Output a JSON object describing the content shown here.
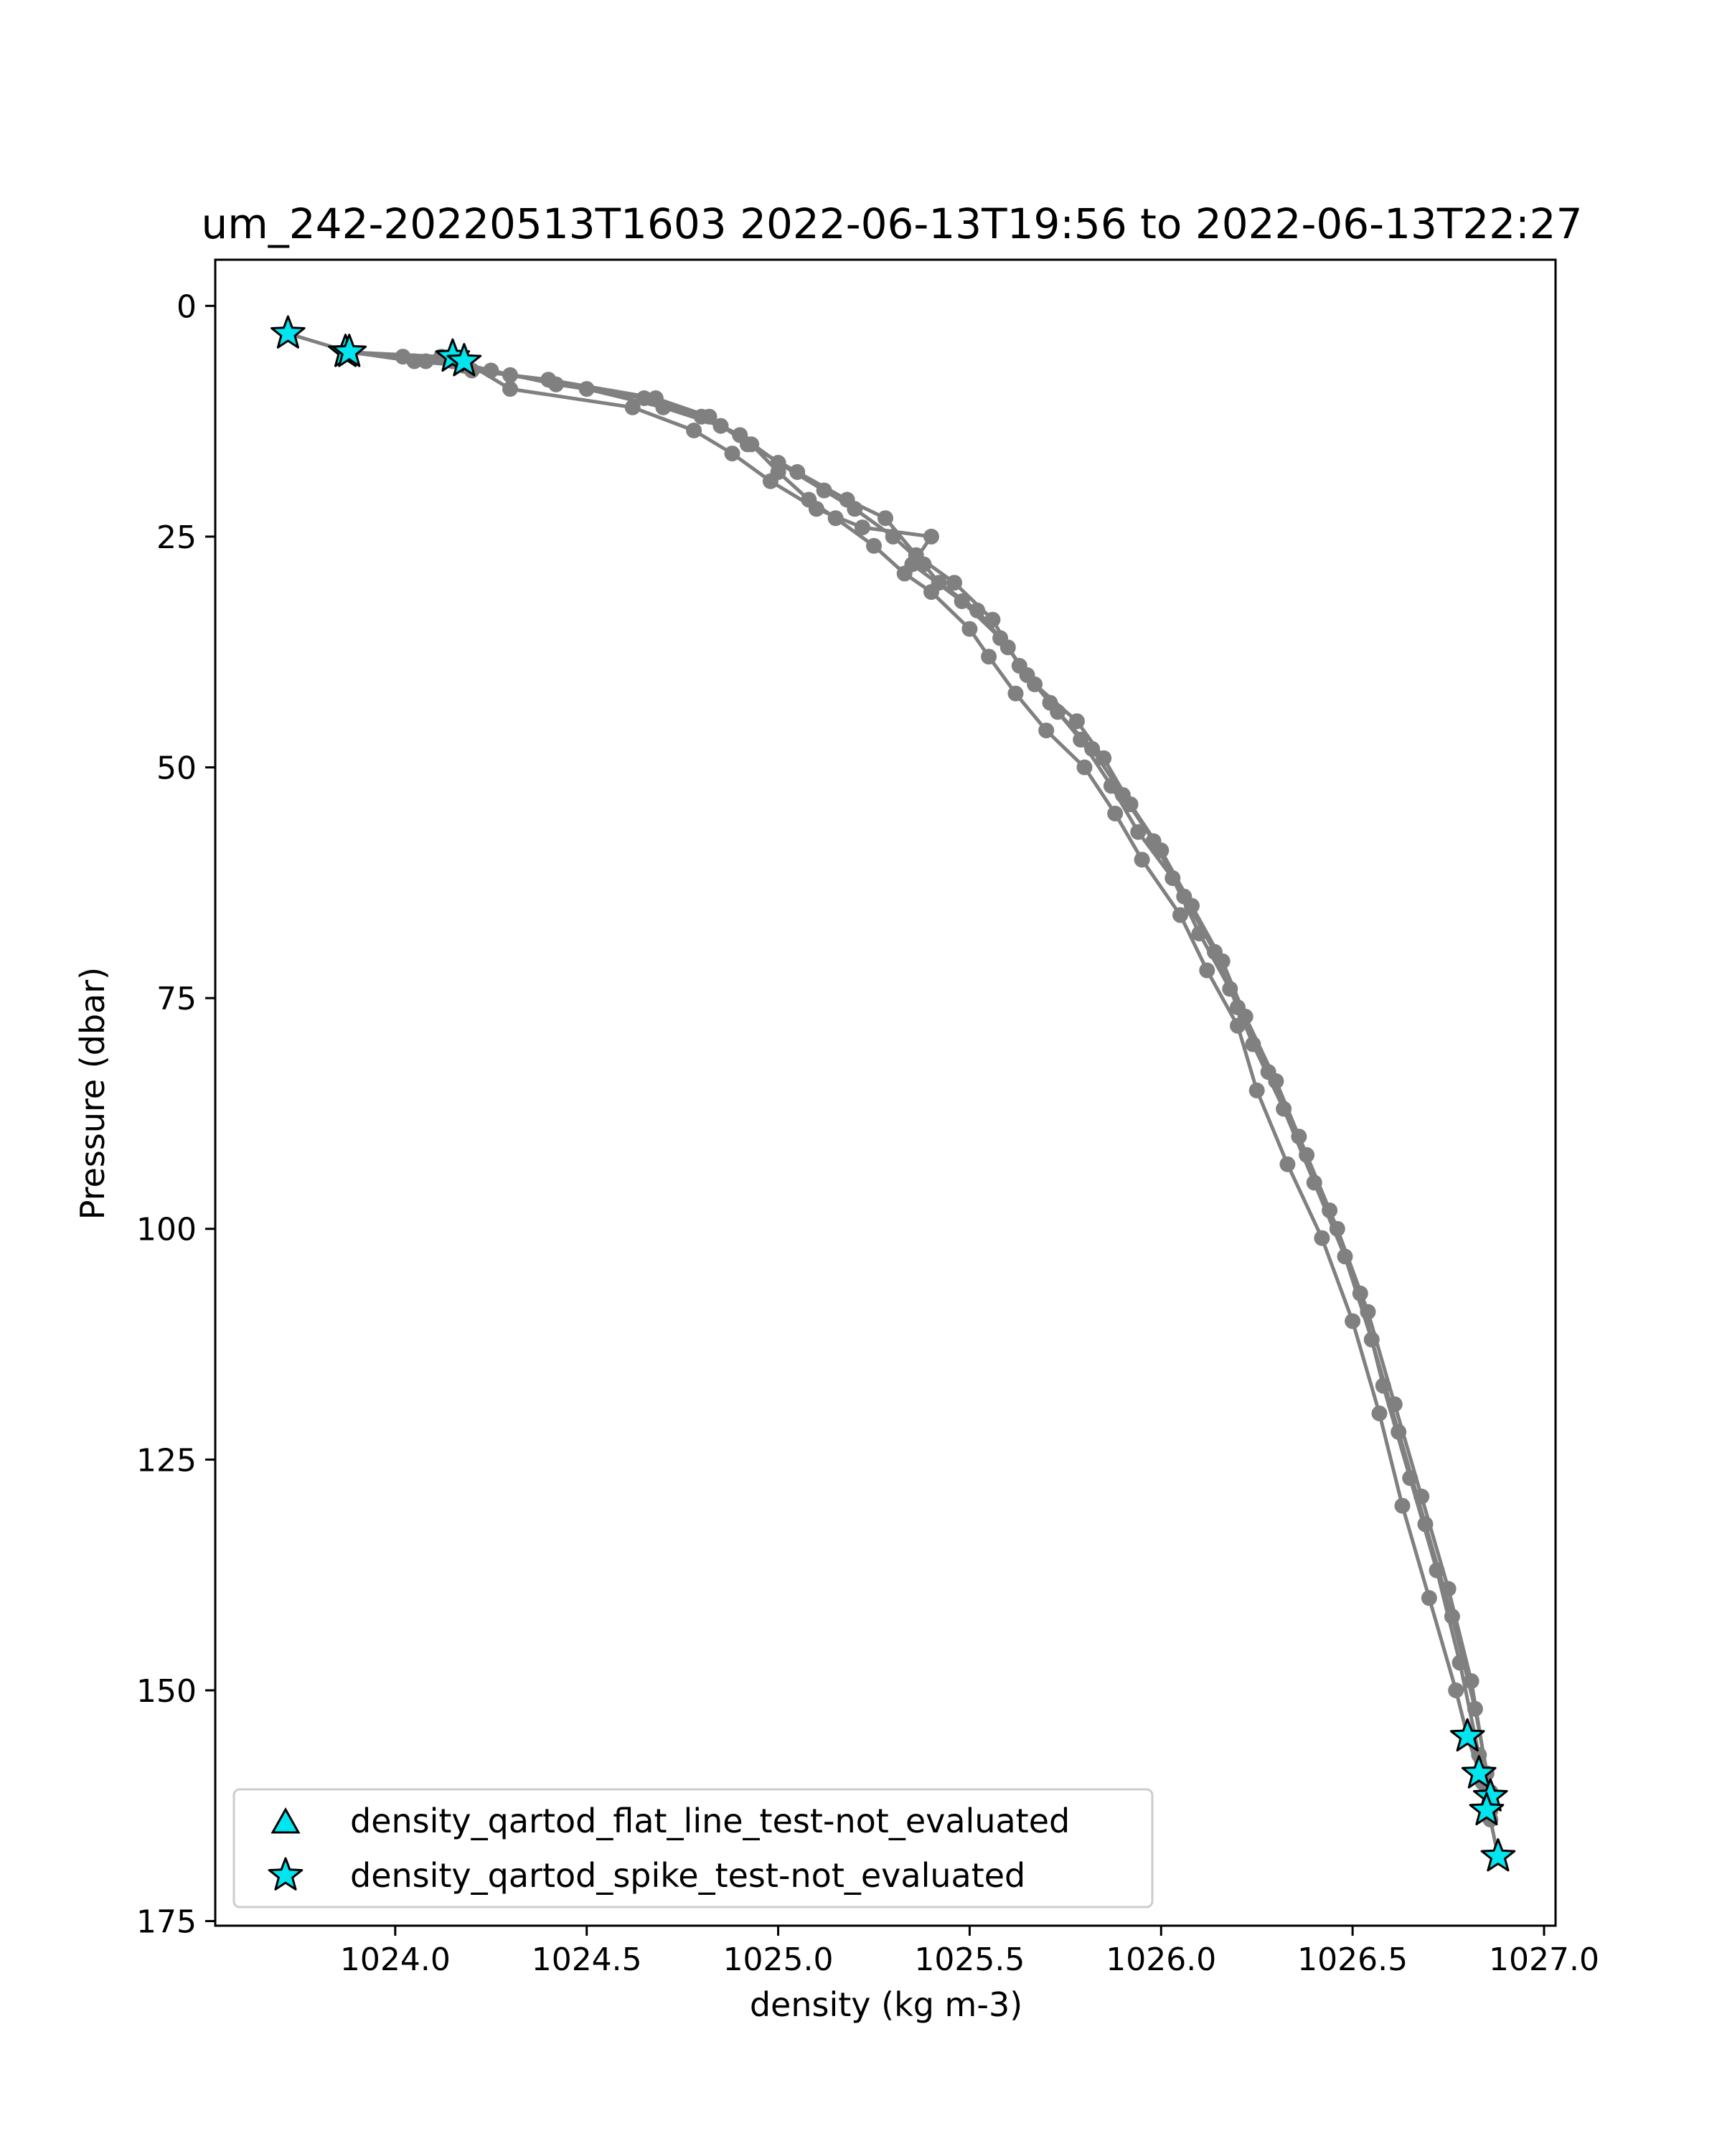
{
  "chart_data": {
    "type": "scatter",
    "title": "um_242-20220513T1603 2022-06-13T19:56 to 2022-06-13T22:27",
    "xlabel": "density (kg m-3)",
    "ylabel": "Pressure (dbar)",
    "xlim": [
      1023.53,
      1027.03
    ],
    "ylim": [
      175.5,
      -5
    ],
    "y_inverted": true,
    "xticks": [
      1024.0,
      1024.5,
      1025.0,
      1025.5,
      1026.0,
      1026.5,
      1027.0
    ],
    "xtick_labels": [
      "1024.0",
      "1024.5",
      "1025.0",
      "1025.5",
      "1026.0",
      "1026.5",
      "1027.0"
    ],
    "yticks": [
      0,
      25,
      50,
      75,
      100,
      125,
      150,
      175
    ],
    "ytick_labels": [
      "0",
      "25",
      "50",
      "75",
      "100",
      "125",
      "150",
      "175"
    ],
    "grid": false,
    "legend_position": "lower-left",
    "series": [
      {
        "name": "",
        "kind": "line+markers",
        "color": "#808080",
        "profiles": [
          {
            "x": [
              1023.72,
              1023.88,
              1024.05,
              1024.18,
              1024.3,
              1024.5,
              1024.7,
              1024.85,
              1024.93,
              1025.0,
              1025.08,
              1025.15,
              1025.25,
              1025.33,
              1025.4,
              1025.5,
              1025.55,
              1025.62,
              1025.7,
              1025.8,
              1025.88,
              1025.95,
              1026.05,
              1026.12,
              1026.2,
              1026.25,
              1026.33,
              1026.42,
              1026.5,
              1026.57,
              1026.63,
              1026.7,
              1026.77,
              1026.8,
              1026.84,
              1026.86,
              1026.88
            ],
            "y": [
              3,
              5,
              6,
              6.5,
              7.5,
              9,
              11,
              13,
              15,
              18,
              21,
              23,
              26,
              29,
              31,
              35,
              38,
              42,
              46,
              50,
              55,
              60,
              66,
              72,
              78,
              85,
              93,
              101,
              110,
              120,
              130,
              140,
              150,
              155,
              160,
              164,
              168
            ]
          },
          {
            "x": [
              1023.88,
              1024.02,
              1024.15,
              1024.25,
              1024.42,
              1024.65,
              1024.8,
              1024.9,
              1025.0,
              1025.12,
              1025.2,
              1025.3,
              1025.38,
              1025.42,
              1025.52,
              1025.6,
              1025.65,
              1025.73,
              1025.82,
              1025.9,
              1025.98,
              1026.06,
              1026.14,
              1026.2,
              1026.28,
              1026.36,
              1026.44,
              1026.52,
              1026.58,
              1026.65,
              1026.72,
              1026.78,
              1026.83,
              1026.86
            ],
            "y": [
              5,
              5.5,
              6,
              7,
              8.5,
              10,
              12,
              14,
              17,
              20,
              22,
              25,
              28,
              30,
              33,
              37,
              40,
              44,
              48,
              53,
              58,
              64,
              70,
              76,
              83,
              90,
              98,
              107,
              117,
              127,
              137,
              147,
              157,
              163
            ]
          },
          {
            "x": [
              1023.87,
              1024.08,
              1024.18,
              1024.3,
              1024.62,
              1024.78,
              1024.88,
              1024.98,
              1025.1,
              1025.22,
              1025.4,
              1025.35,
              1025.48,
              1025.58,
              1025.67,
              1025.78,
              1025.85,
              1025.92,
              1026.0,
              1026.08,
              1026.16,
              1026.22,
              1026.3,
              1026.38,
              1026.46,
              1026.54,
              1026.61,
              1026.68,
              1026.75,
              1026.81,
              1026.85
            ],
            "y": [
              5,
              6,
              6,
              9,
              11,
              13.5,
              16,
              19,
              22,
              24,
              25,
              28,
              32,
              36,
              41,
              45,
              49,
              54,
              59,
              65,
              71,
              77,
              84,
              92,
              100,
              109,
              119,
              129,
              139,
              149,
              159
            ]
          },
          {
            "x": [
              1023.87,
              1024.12,
              1024.2,
              1024.4,
              1024.68,
              1024.82,
              1024.92,
              1025.05,
              1025.18,
              1025.28,
              1025.36,
              1025.46,
              1025.56,
              1025.63,
              1025.71,
              1025.79,
              1025.87,
              1025.94,
              1026.03,
              1026.1,
              1026.18,
              1026.24,
              1026.32,
              1026.4,
              1026.48,
              1026.55,
              1026.62,
              1026.69,
              1026.76,
              1026.82,
              1026.86
            ],
            "y": [
              5,
              5.5,
              7,
              8,
              10,
              12,
              15,
              18,
              21,
              23,
              27,
              30,
              34,
              39,
              43,
              47,
              52,
              57,
              62,
              68,
              74,
              80,
              87,
              95,
              103,
              112,
              122,
              132,
              142,
              152,
              161
            ]
          }
        ]
      },
      {
        "name": "density_qartod_flat_line_test-not_evaluated",
        "kind": "markers",
        "marker": "triangle",
        "color": "#00e5ee",
        "x": [],
        "y": []
      },
      {
        "name": "density_qartod_spike_test-not_evaluated",
        "kind": "markers",
        "marker": "star",
        "color": "#00e5ee",
        "x": [
          1023.72,
          1023.87,
          1023.88,
          1024.15,
          1024.18,
          1026.8,
          1026.83,
          1026.86,
          1026.85,
          1026.88
        ],
        "y": [
          3,
          5,
          5,
          5.5,
          6,
          155,
          159,
          161.5,
          163,
          168
        ]
      }
    ]
  }
}
